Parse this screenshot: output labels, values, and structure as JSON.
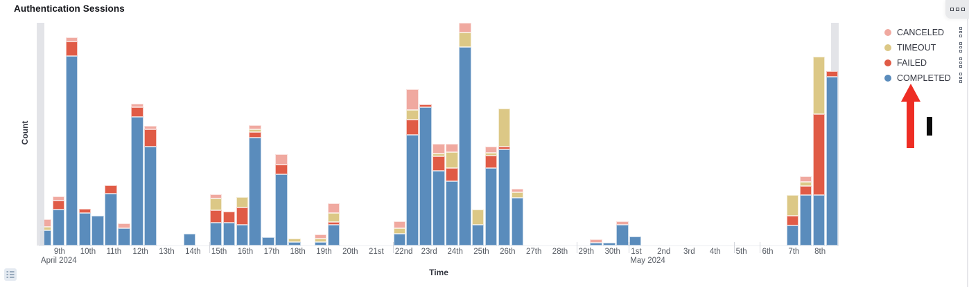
{
  "panel": {
    "title": "Authentication Sessions",
    "options_button": "panel-options",
    "legend_toggle": "toggle-legend"
  },
  "legend": {
    "items": [
      {
        "label": "CANCELED",
        "color": "#F0A9A0"
      },
      {
        "label": "TIMEOUT",
        "color": "#DCC886"
      },
      {
        "label": "FAILED",
        "color": "#E05B46"
      },
      {
        "label": "COMPLETED",
        "color": "#5A8CBC"
      }
    ]
  },
  "annotations": {
    "arrow": {
      "shape": "red-arrow-up",
      "color": "#EE2D24",
      "points_to": "COMPLETED legend item"
    },
    "marker": {
      "shape": "black-vertical-bar",
      "color": "#0C0C0C"
    }
  },
  "chart_data": {
    "type": "bar",
    "stacked": true,
    "title": "Authentication Sessions",
    "xlabel": "Time",
    "ylabel": "Count",
    "grid": false,
    "legend_position": "right",
    "y_axis_tick_labels_visible": false,
    "value_unit": "relative count (estimated from pixel height; y-axis has no numeric labels)",
    "ylim": [
      0,
      320
    ],
    "x_unit": "12-hour buckets",
    "x_range": "Apr 8 2024 12:00 (partial) to May 8 2024 (partial)",
    "slots_total": 61,
    "series_order_bottom_to_top": [
      "completed",
      "failed",
      "timeout",
      "canceled"
    ],
    "series_colors": {
      "completed": "#5A8CBC",
      "failed": "#E05B46",
      "timeout": "#DCC886",
      "canceled": "#F0A9A0"
    },
    "partial_buckets": [
      {
        "slot": 0,
        "edge": "left"
      },
      {
        "slot": 60,
        "edge": "right"
      }
    ],
    "tick_mark_slots": [
      13,
      27,
      41,
      45,
      53,
      55
    ],
    "x_ticks": [
      {
        "label": "9th",
        "slot": 1,
        "month": "April 2024"
      },
      {
        "label": "10th",
        "slot": 3
      },
      {
        "label": "11th",
        "slot": 5
      },
      {
        "label": "12th",
        "slot": 7
      },
      {
        "label": "13th",
        "slot": 9
      },
      {
        "label": "14th",
        "slot": 11
      },
      {
        "label": "15th",
        "slot": 13
      },
      {
        "label": "16th",
        "slot": 15
      },
      {
        "label": "17th",
        "slot": 17
      },
      {
        "label": "18th",
        "slot": 19
      },
      {
        "label": "19th",
        "slot": 21
      },
      {
        "label": "20th",
        "slot": 23
      },
      {
        "label": "21st",
        "slot": 25
      },
      {
        "label": "22nd",
        "slot": 27
      },
      {
        "label": "23rd",
        "slot": 29
      },
      {
        "label": "24th",
        "slot": 31
      },
      {
        "label": "25th",
        "slot": 33
      },
      {
        "label": "26th",
        "slot": 35
      },
      {
        "label": "27th",
        "slot": 37
      },
      {
        "label": "28th",
        "slot": 39
      },
      {
        "label": "29th",
        "slot": 41
      },
      {
        "label": "30th",
        "slot": 43
      },
      {
        "label": "1st",
        "slot": 45,
        "month": "May 2024"
      },
      {
        "label": "2nd",
        "slot": 47
      },
      {
        "label": "3rd",
        "slot": 49
      },
      {
        "label": "4th",
        "slot": 51
      },
      {
        "label": "5th",
        "slot": 53
      },
      {
        "label": "6th",
        "slot": 55
      },
      {
        "label": "7th",
        "slot": 57
      },
      {
        "label": "8th",
        "slot": 59
      }
    ],
    "bars": [
      {
        "slot": 0,
        "date": "Apr 8 PM (partial)",
        "completed": 22,
        "failed": 0,
        "timeout": 5,
        "canceled": 11
      },
      {
        "slot": 1,
        "date": "Apr 9 AM",
        "completed": 52,
        "failed": 13,
        "timeout": 0,
        "canceled": 6
      },
      {
        "slot": 2,
        "date": "Apr 9 PM",
        "completed": 274,
        "failed": 21,
        "timeout": 0,
        "canceled": 6
      },
      {
        "slot": 3,
        "date": "Apr 10 AM",
        "completed": 47,
        "failed": 6,
        "timeout": 0,
        "canceled": 0
      },
      {
        "slot": 4,
        "date": "Apr 10 PM",
        "completed": 43,
        "failed": 0,
        "timeout": 0,
        "canceled": 0
      },
      {
        "slot": 5,
        "date": "Apr 11 AM",
        "completed": 75,
        "failed": 12,
        "timeout": 0,
        "canceled": 0
      },
      {
        "slot": 6,
        "date": "Apr 11 PM",
        "completed": 25,
        "failed": 0,
        "timeout": 0,
        "canceled": 7
      },
      {
        "slot": 7,
        "date": "Apr 12 AM",
        "completed": 186,
        "failed": 14,
        "timeout": 0,
        "canceled": 5
      },
      {
        "slot": 8,
        "date": "Apr 12 PM",
        "completed": 143,
        "failed": 25,
        "timeout": 0,
        "canceled": 5
      },
      {
        "slot": 11,
        "date": "Apr 14 AM",
        "completed": 17,
        "failed": 0,
        "timeout": 0,
        "canceled": 0
      },
      {
        "slot": 13,
        "date": "Apr 15 AM",
        "completed": 33,
        "failed": 18,
        "timeout": 17,
        "canceled": 6
      },
      {
        "slot": 14,
        "date": "Apr 15 PM",
        "completed": 33,
        "failed": 16,
        "timeout": 0,
        "canceled": 0
      },
      {
        "slot": 15,
        "date": "Apr 16 AM",
        "completed": 30,
        "failed": 25,
        "timeout": 15,
        "canceled": 0
      },
      {
        "slot": 16,
        "date": "Apr 16 PM",
        "completed": 156,
        "failed": 8,
        "timeout": 4,
        "canceled": 6
      },
      {
        "slot": 17,
        "date": "Apr 17 AM",
        "completed": 12,
        "failed": 0,
        "timeout": 0,
        "canceled": 0
      },
      {
        "slot": 18,
        "date": "Apr 17 PM",
        "completed": 103,
        "failed": 14,
        "timeout": 0,
        "canceled": 15
      },
      {
        "slot": 19,
        "date": "Apr 18 AM",
        "completed": 5,
        "failed": 0,
        "timeout": 5,
        "canceled": 0
      },
      {
        "slot": 21,
        "date": "Apr 19 AM",
        "completed": 5,
        "failed": 0,
        "timeout": 5,
        "canceled": 6
      },
      {
        "slot": 22,
        "date": "Apr 19 PM",
        "completed": 30,
        "failed": 4,
        "timeout": 13,
        "canceled": 14
      },
      {
        "slot": 27,
        "date": "Apr 22 AM",
        "completed": 17,
        "failed": 0,
        "timeout": 8,
        "canceled": 10
      },
      {
        "slot": 28,
        "date": "Apr 22 PM",
        "completed": 160,
        "failed": 22,
        "timeout": 14,
        "canceled": 30
      },
      {
        "slot": 29,
        "date": "Apr 23 AM",
        "completed": 200,
        "failed": 4,
        "timeout": 0,
        "canceled": 0
      },
      {
        "slot": 30,
        "date": "Apr 23 PM",
        "completed": 108,
        "failed": 21,
        "timeout": 4,
        "canceled": 14
      },
      {
        "slot": 31,
        "date": "Apr 24 AM",
        "completed": 93,
        "failed": 19,
        "timeout": 23,
        "canceled": 12
      },
      {
        "slot": 32,
        "date": "Apr 24 PM",
        "completed": 287,
        "failed": 0,
        "timeout": 21,
        "canceled": 14
      },
      {
        "slot": 33,
        "date": "Apr 25 AM",
        "completed": 30,
        "failed": 0,
        "timeout": 22,
        "canceled": 0
      },
      {
        "slot": 34,
        "date": "Apr 25 PM",
        "completed": 112,
        "failed": 18,
        "timeout": 4,
        "canceled": 9
      },
      {
        "slot": 35,
        "date": "Apr 26 AM",
        "completed": 139,
        "failed": 4,
        "timeout": 55,
        "canceled": 0
      },
      {
        "slot": 36,
        "date": "Apr 26 PM",
        "completed": 69,
        "failed": 0,
        "timeout": 8,
        "canceled": 5
      },
      {
        "slot": 42,
        "date": "Apr 29 PM",
        "completed": 4,
        "failed": 0,
        "timeout": 0,
        "canceled": 5
      },
      {
        "slot": 43,
        "date": "Apr 30 AM",
        "completed": 4,
        "failed": 0,
        "timeout": 0,
        "canceled": 0
      },
      {
        "slot": 44,
        "date": "Apr 30 PM",
        "completed": 30,
        "failed": 0,
        "timeout": 0,
        "canceled": 5
      },
      {
        "slot": 45,
        "date": "May 1 AM",
        "completed": 13,
        "failed": 0,
        "timeout": 0,
        "canceled": 0
      },
      {
        "slot": 57,
        "date": "May 7 AM",
        "completed": 29,
        "failed": 14,
        "timeout": 30,
        "canceled": 0
      },
      {
        "slot": 58,
        "date": "May 7 PM",
        "completed": 73,
        "failed": 13,
        "timeout": 6,
        "canceled": 8
      },
      {
        "slot": 59,
        "date": "May 8 AM",
        "completed": 73,
        "failed": 117,
        "timeout": 83,
        "canceled": 0
      },
      {
        "slot": 60,
        "date": "May 8 PM (partial)",
        "completed": 244,
        "failed": 8,
        "timeout": 0,
        "canceled": 0
      }
    ]
  }
}
